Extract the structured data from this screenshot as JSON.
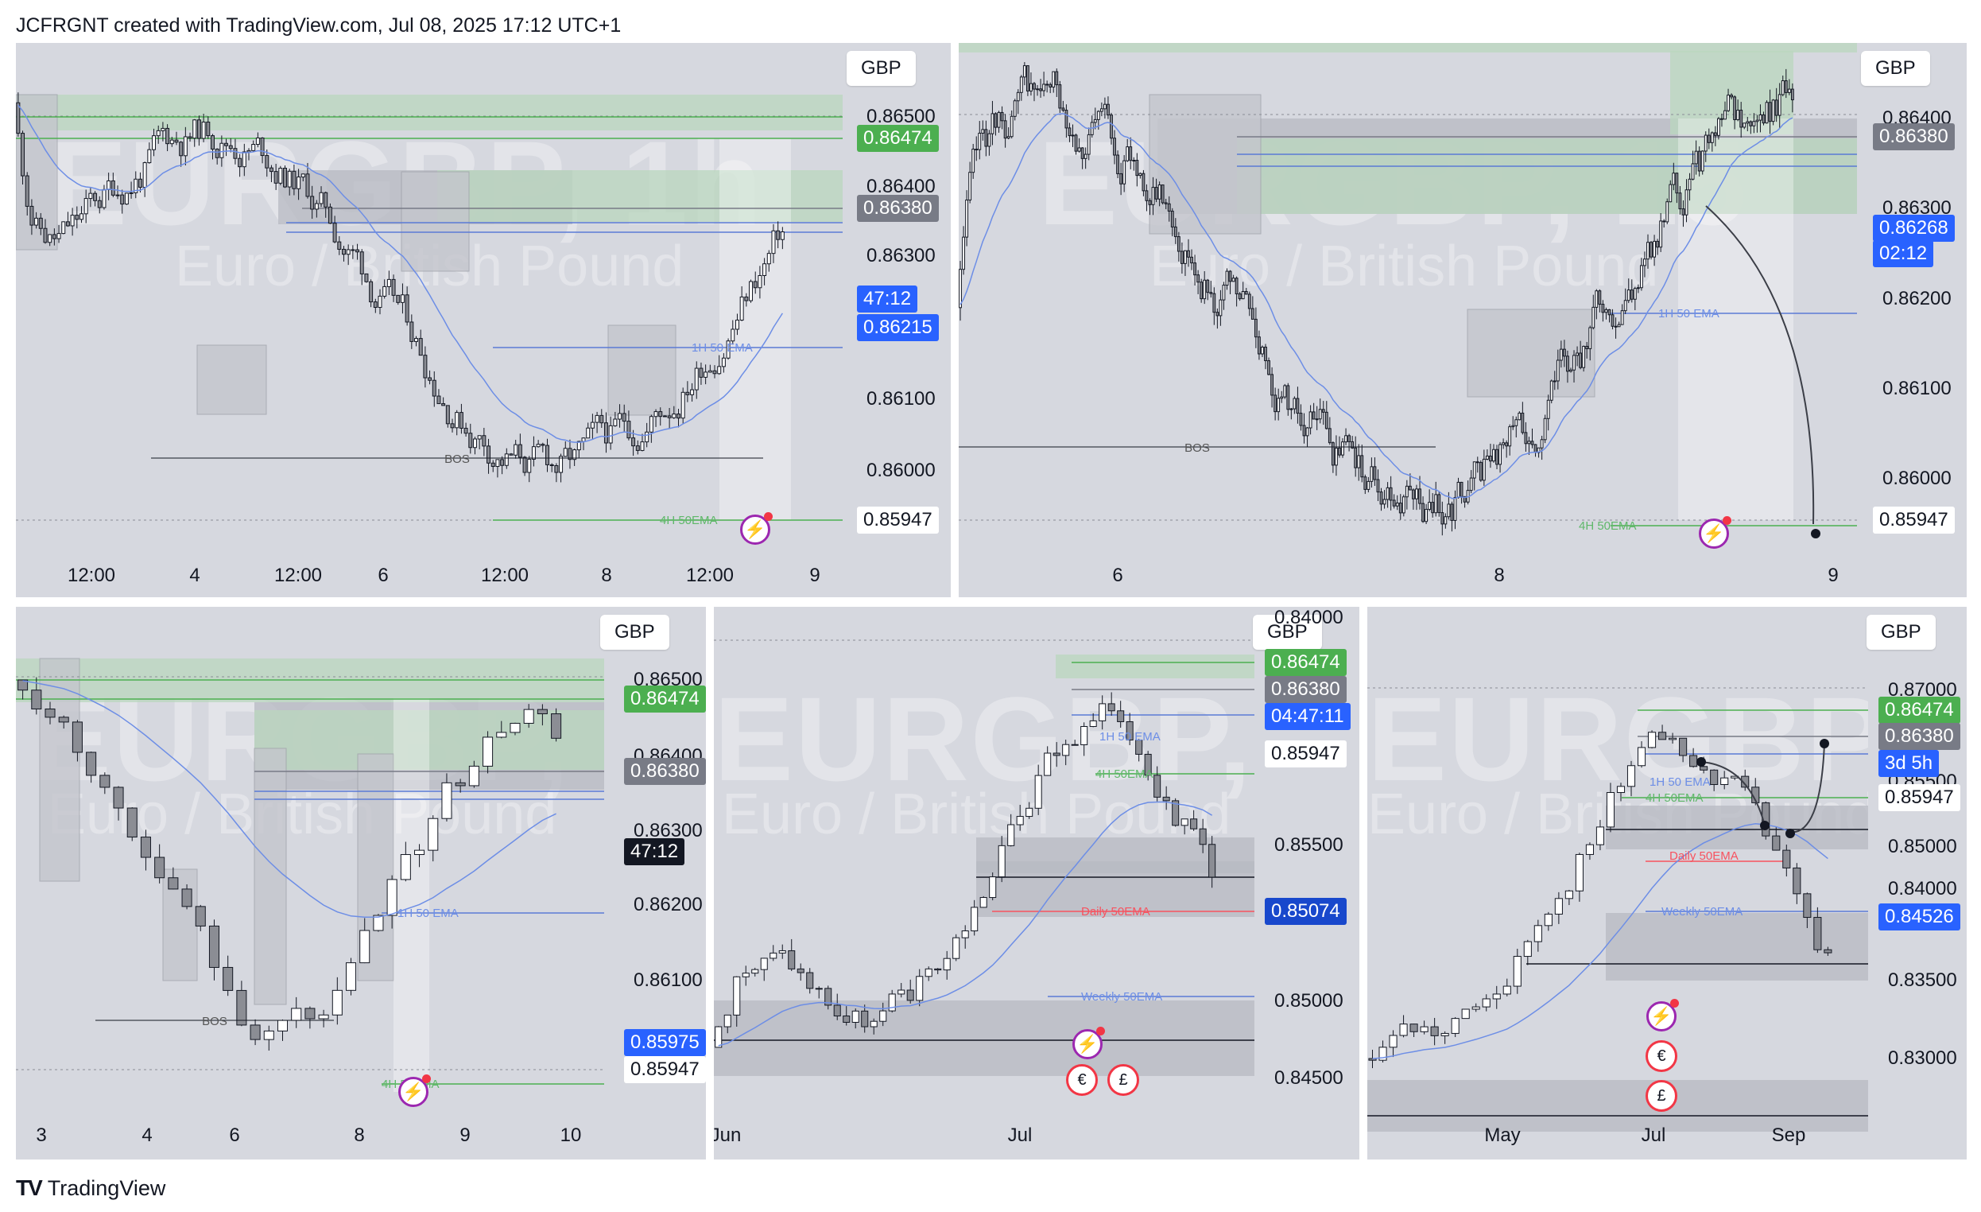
{
  "header": {
    "text": "JCFRGNT created with TradingView.com, Jul 08, 2025 17:12 UTC+1"
  },
  "footer": {
    "logo": "TV",
    "brand": "TradingView"
  },
  "chart_data": [
    {
      "type": "candlestick",
      "symbol": "EURGBP",
      "timeframe": "1h",
      "watermark": "EURGBP, 1h",
      "watermark_sub": "Euro / British Pound",
      "currency": "GBP",
      "y_ticks": [
        "0.86500",
        "0.86400",
        "0.86300",
        "0.86100",
        "0.86000"
      ],
      "x_ticks": [
        "12:00",
        "4",
        "12:00",
        "6",
        "12:00",
        "8",
        "12:00",
        "9"
      ],
      "price_tags": [
        {
          "text": "0.86474",
          "bg": "#4caf50",
          "fg": "#ffffff"
        },
        {
          "text": "0.86380",
          "bg": "#787b86",
          "fg": "#ffffff"
        },
        {
          "text": "47:12",
          "bg": "#2962ff",
          "fg": "#ffffff"
        },
        {
          "text": "0.86215",
          "bg": "#2962ff",
          "fg": "#ffffff"
        },
        {
          "text": "0.85947",
          "bg": "#ffffff",
          "fg": "#131722"
        }
      ],
      "annotations": [
        "BOS",
        "1H 50 EMA",
        "4H 50EMA"
      ],
      "ylim": [
        0.8594,
        0.8654
      ]
    },
    {
      "type": "candlestick",
      "symbol": "EURGBP",
      "timeframe": "15m",
      "watermark": "EURGBP, 15",
      "watermark_sub": "Euro / British Pound",
      "currency": "GBP",
      "y_ticks": [
        "0.86400",
        "0.86300",
        "0.86200",
        "0.86100",
        "0.86000"
      ],
      "x_ticks": [
        "6",
        "8",
        "9"
      ],
      "price_tags": [
        {
          "text": "0.86380",
          "bg": "#787b86",
          "fg": "#ffffff"
        },
        {
          "text": "0.86268",
          "bg": "#2962ff",
          "fg": "#ffffff"
        },
        {
          "text": "02:12",
          "bg": "#2962ff",
          "fg": "#ffffff"
        },
        {
          "text": "0.85947",
          "bg": "#ffffff",
          "fg": "#131722"
        }
      ],
      "annotations": [
        "BOS",
        "1H 50 EMA",
        "4H 50EMA"
      ],
      "ylim": [
        0.8594,
        0.8648
      ]
    },
    {
      "type": "candlestick",
      "symbol": "EURGBP",
      "timeframe": "4h",
      "watermark": "EURGBP, 4h",
      "watermark_sub": "Euro / British Pound",
      "currency": "GBP",
      "y_ticks": [
        "0.86500",
        "0.86400",
        "0.86300",
        "0.86200",
        "0.86100",
        "0.86000"
      ],
      "x_ticks": [
        "3",
        "4",
        "6",
        "8",
        "9",
        "10"
      ],
      "price_tags": [
        {
          "text": "0.86474",
          "bg": "#4caf50",
          "fg": "#ffffff"
        },
        {
          "text": "0.86380",
          "bg": "#787b86",
          "fg": "#ffffff"
        },
        {
          "text": "47:12",
          "bg": "#131722",
          "fg": "#ffffff"
        },
        {
          "text": "0.85975",
          "bg": "#2962ff",
          "fg": "#ffffff"
        },
        {
          "text": "0.85947",
          "bg": "#ffffff",
          "fg": "#131722"
        }
      ],
      "annotations": [
        "BOS",
        "1H 50 EMA",
        "4H 50EMA"
      ],
      "ylim": [
        0.8592,
        0.8655
      ]
    },
    {
      "type": "candlestick",
      "symbol": "EURGBP",
      "timeframe": "1D",
      "watermark": "EURGBP, 1D",
      "watermark_sub": "Euro / British Pound",
      "currency": "GBP",
      "y_ticks": [
        "0.85500",
        "0.85000",
        "0.84500",
        "0.84000"
      ],
      "x_ticks": [
        "Jun",
        "Jul"
      ],
      "price_tags": [
        {
          "text": "0.86474",
          "bg": "#4caf50",
          "fg": "#ffffff"
        },
        {
          "text": "0.86380",
          "bg": "#787b86",
          "fg": "#ffffff"
        },
        {
          "text": "04:47:11",
          "bg": "#2962ff",
          "fg": "#ffffff"
        },
        {
          "text": "0.85947",
          "bg": "#ffffff",
          "fg": "#131722"
        },
        {
          "text": "0.85074",
          "bg": "#1848cc",
          "fg": "#ffffff"
        }
      ],
      "annotations": [
        "1H 50 EMA",
        "4H 50EMA",
        "Daily 50EMA",
        "Weekly 50EMA"
      ],
      "ylim": [
        0.8395,
        0.8668
      ]
    },
    {
      "type": "candlestick",
      "symbol": "EURGBP",
      "timeframe": "1W",
      "watermark": "EURGBP, 1W",
      "watermark_sub": "Euro / British Pound",
      "currency": "GBP",
      "y_ticks": [
        "0.87000",
        "0.85500",
        "0.85000",
        "0.84000",
        "0.83500",
        "0.83000"
      ],
      "x_ticks": [
        "May",
        "Jul",
        "Sep"
      ],
      "price_tags": [
        {
          "text": "0.86474",
          "bg": "#4caf50",
          "fg": "#ffffff"
        },
        {
          "text": "0.86380",
          "bg": "#787b86",
          "fg": "#ffffff"
        },
        {
          "text": "3d 5h",
          "bg": "#2962ff",
          "fg": "#ffffff"
        },
        {
          "text": "0.85947",
          "bg": "#ffffff",
          "fg": "#131722"
        },
        {
          "text": "0.84526",
          "bg": "#2962ff",
          "fg": "#ffffff"
        }
      ],
      "annotations": [
        "1H 50 EMA",
        "4H 50EMA",
        "Daily 50EMA",
        "Weekly 50EMA"
      ],
      "ylim": [
        0.829,
        0.873
      ]
    }
  ]
}
